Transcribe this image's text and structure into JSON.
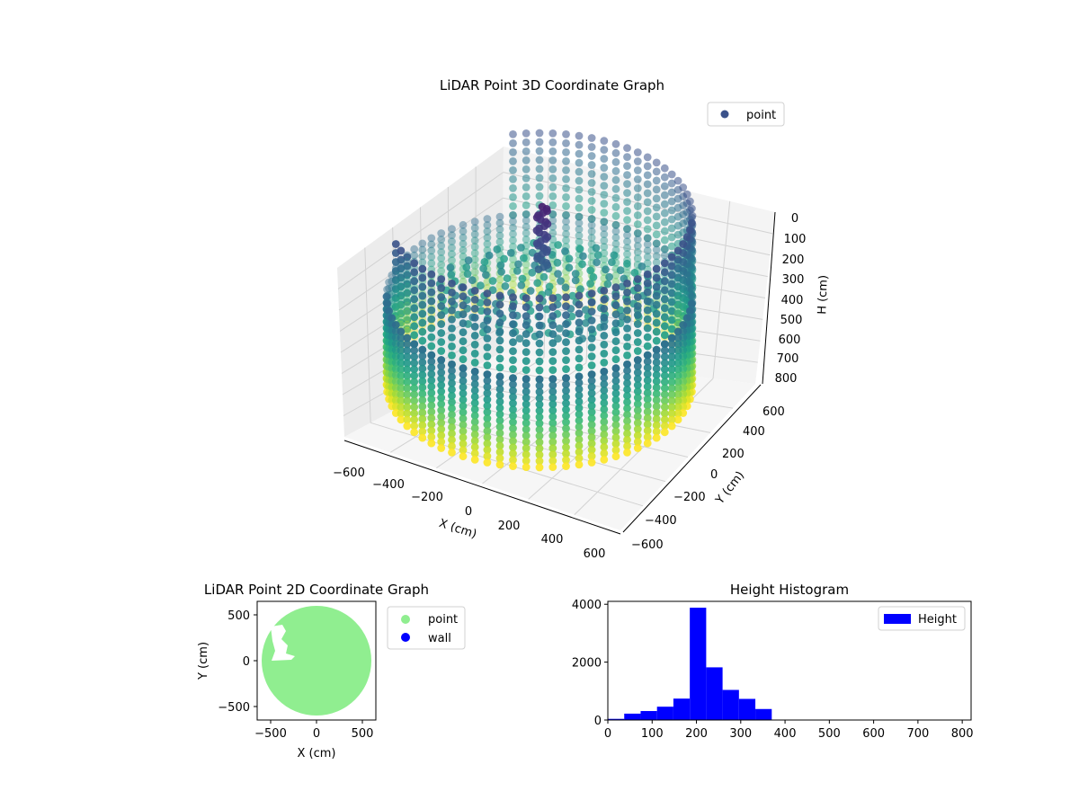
{
  "chart_data": [
    {
      "type": "scatter",
      "title": "LiDAR Point 3D Coordinate Graph",
      "xlabel": "X (cm)",
      "ylabel": "Y (cm)",
      "zlabel": "H (cm)",
      "xlim": [
        -600,
        600
      ],
      "ylim": [
        -600,
        600
      ],
      "zlim": [
        0,
        800
      ],
      "z_inverted": true,
      "x_ticks": [
        "−600",
        "−400",
        "−200",
        "0",
        "200",
        "400",
        "600"
      ],
      "y_ticks": [
        "−600",
        "−400",
        "−200",
        "0",
        "200",
        "400",
        "600"
      ],
      "z_ticks": [
        "0",
        "100",
        "200",
        "300",
        "400",
        "500",
        "600",
        "700",
        "800"
      ],
      "colormap": "viridis",
      "legend": {
        "label": "point",
        "placement": "top-right",
        "color": "#3b528b"
      },
      "grid": true
    },
    {
      "type": "scatter",
      "title": "LiDAR Point 2D Coordinate Graph",
      "xlabel": "X (cm)",
      "ylabel": "Y (cm)",
      "xlim": [
        -650,
        650
      ],
      "ylim": [
        -650,
        650
      ],
      "x_ticks": [
        "−500",
        "0",
        "500"
      ],
      "y_ticks": [
        "−500",
        "0",
        "500"
      ],
      "series": [
        {
          "name": "point",
          "color": "#90ee90"
        },
        {
          "name": "wall",
          "color": "#0000ff"
        }
      ],
      "legend_placement": "outside-right"
    },
    {
      "type": "bar",
      "title": "Height Histogram",
      "xlabel": "",
      "ylabel": "",
      "xlim": [
        0,
        820
      ],
      "ylim": [
        0,
        4100
      ],
      "x_ticks": [
        "0",
        "100",
        "200",
        "300",
        "400",
        "500",
        "600",
        "700",
        "800"
      ],
      "y_ticks": [
        "0",
        "2000",
        "4000"
      ],
      "bin_width": 37,
      "bins": [
        0,
        37,
        74,
        111,
        148,
        185,
        222,
        259,
        296,
        333,
        370,
        407,
        444,
        481,
        518,
        555,
        592,
        629,
        666,
        703,
        740,
        777
      ],
      "values": [
        40,
        220,
        310,
        460,
        740,
        3880,
        1820,
        1040,
        730,
        380,
        0,
        0,
        0,
        0,
        0,
        0,
        0,
        0,
        0,
        0,
        0,
        0
      ],
      "series": [
        {
          "name": "Height",
          "color": "#0000ff"
        }
      ],
      "legend_placement": "top-right"
    }
  ]
}
